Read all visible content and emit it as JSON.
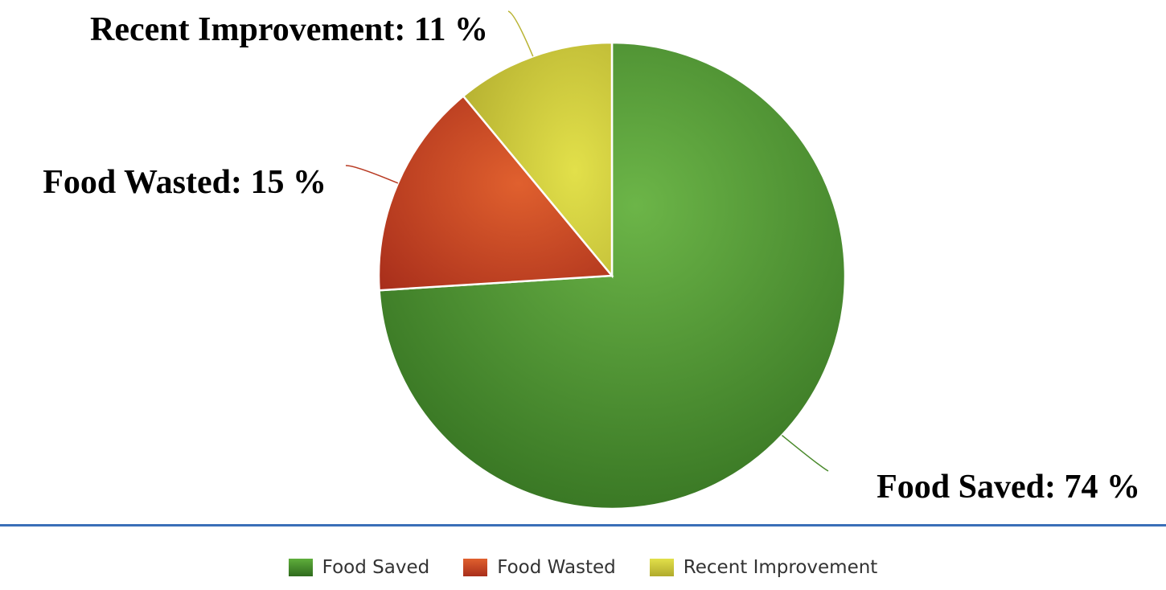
{
  "chart_data": {
    "type": "pie",
    "slices": [
      {
        "label": "Food Saved",
        "value": 74,
        "data_label": "Food Saved: 74 %",
        "color": "#4a9a2f"
      },
      {
        "label": "Food Wasted",
        "value": 15,
        "data_label": "Food Wasted: 15 %",
        "color": "#c9472a"
      },
      {
        "label": "Recent Improvement",
        "value": 11,
        "data_label": "Recent Improvement: 11 %",
        "color": "#cdc93b"
      }
    ],
    "legend": {
      "position": "bottom",
      "entries": [
        "Food Saved",
        "Food Wasted",
        "Recent Improvement"
      ]
    },
    "start_at": "top",
    "direction": "clockwise"
  }
}
